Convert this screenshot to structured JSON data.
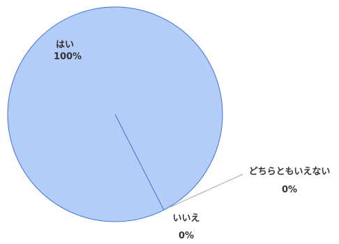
{
  "chart_data": {
    "type": "pie",
    "categories": [
      "はい",
      "いいえ",
      "どちらともいえない"
    ],
    "values": [
      100,
      0,
      0
    ],
    "value_labels": [
      "100%",
      "0%",
      "0%"
    ],
    "colors": {
      "slice_fill": "#b4cdf8",
      "slice_stroke": "#3a73d8",
      "leader_line": "#a6a6a6"
    },
    "title": "",
    "legend": "none"
  }
}
